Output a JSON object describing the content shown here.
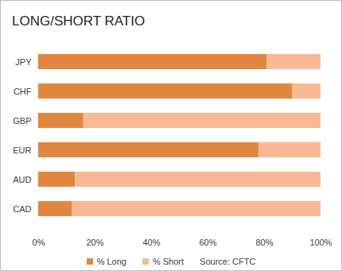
{
  "chart_data": {
    "type": "bar",
    "title": "LONG/SHORT RATIO",
    "orientation": "horizontal",
    "stacked": true,
    "categories": [
      "JPY",
      "CHF",
      "GBP",
      "EUR",
      "AUD",
      "CAD"
    ],
    "series": [
      {
        "name": "% Long",
        "color": "#e0873f",
        "values": [
          81,
          90,
          16,
          78,
          13,
          12
        ]
      },
      {
        "name": "% Short",
        "color": "#f9b994",
        "values": [
          19,
          10,
          84,
          22,
          87,
          88
        ]
      }
    ],
    "xlim": [
      0,
      100
    ],
    "xticks": [
      {
        "value": 0,
        "label": "0%"
      },
      {
        "value": 20,
        "label": "20%"
      },
      {
        "value": 40,
        "label": "40%"
      },
      {
        "value": 60,
        "label": "60%"
      },
      {
        "value": 80,
        "label": "80%"
      },
      {
        "value": 100,
        "label": "100%"
      }
    ],
    "grid": false,
    "legend": "bottom",
    "annotations": [
      "Source: CFTC"
    ]
  }
}
